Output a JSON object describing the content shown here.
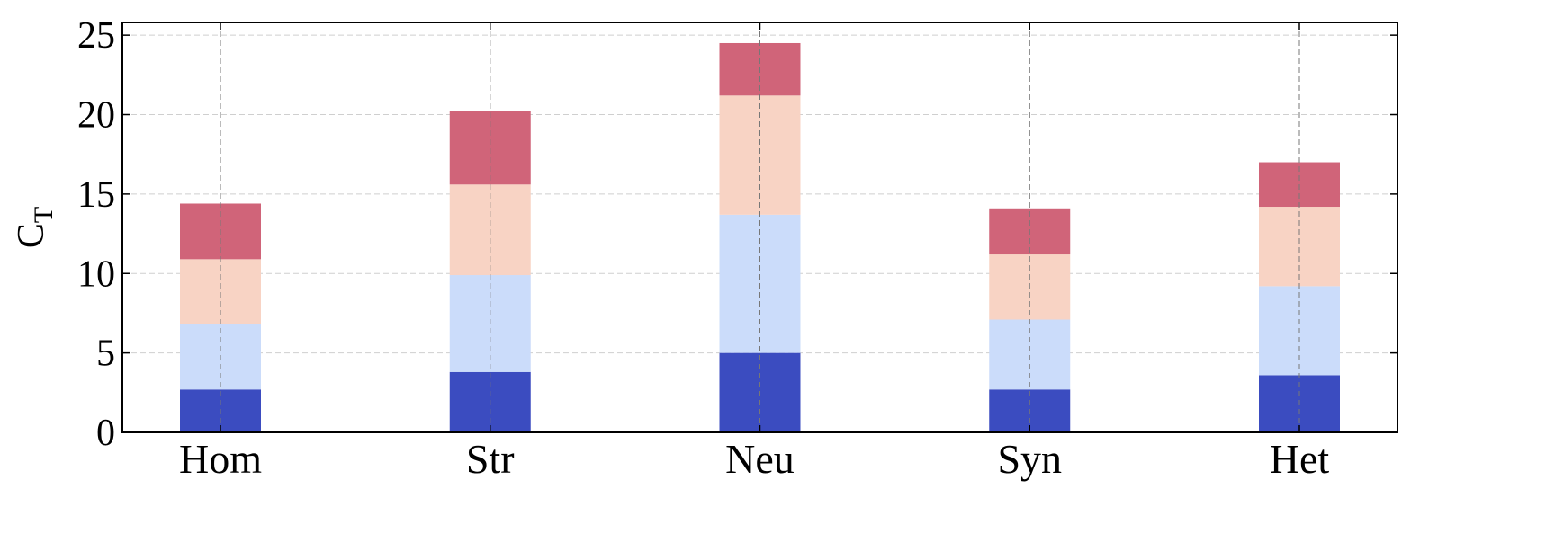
{
  "chart_data": {
    "type": "stacked_bar",
    "ylabel": "C",
    "ylabel_subscript": "T",
    "categories": [
      "Hom",
      "Str",
      "Neu",
      "Syn",
      "Het"
    ],
    "series": [
      {
        "color": "#3b4cc0",
        "values": [
          2.7,
          3.8,
          5.0,
          2.7,
          3.6
        ]
      },
      {
        "color": "#cbdcfa",
        "values": [
          4.1,
          6.1,
          8.7,
          4.4,
          5.6
        ]
      },
      {
        "color": "#f8d3c4",
        "values": [
          4.1,
          5.7,
          7.5,
          4.1,
          5.0
        ]
      },
      {
        "color": "#d06479",
        "values": [
          3.5,
          4.6,
          3.3,
          2.9,
          2.8
        ]
      }
    ],
    "ylim": [
      0,
      25.8
    ],
    "yticks": [
      0,
      5,
      10,
      15,
      20,
      25
    ],
    "grid": true
  }
}
